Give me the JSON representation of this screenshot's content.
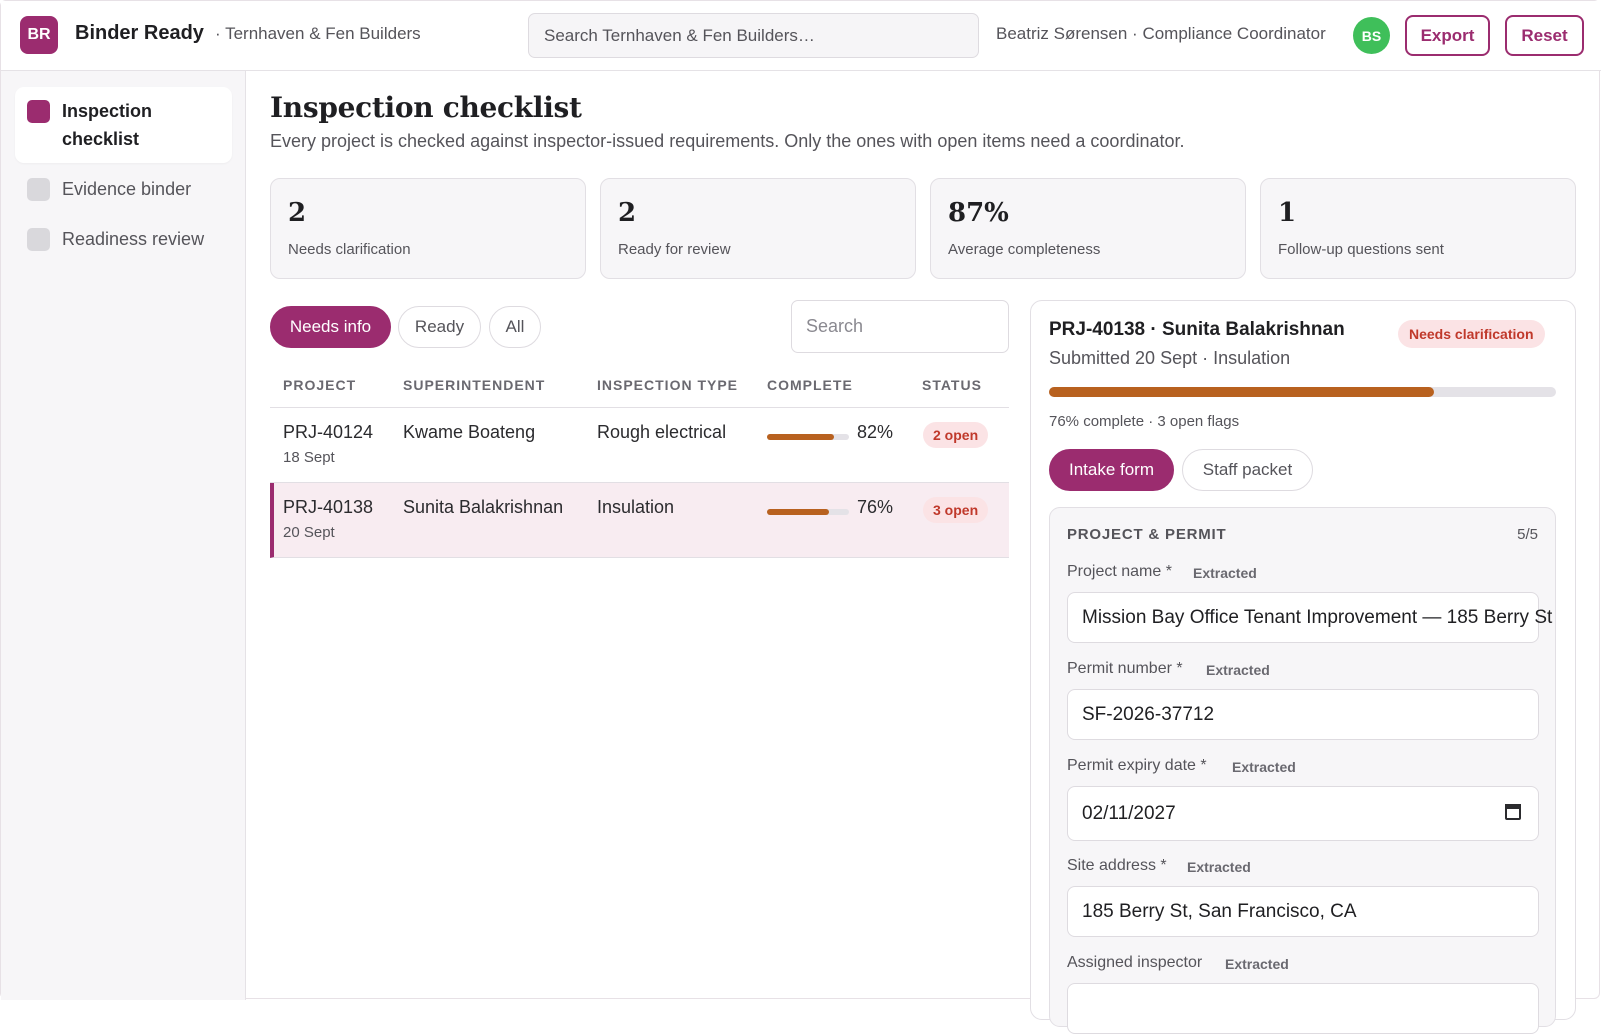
{
  "app": {
    "logo_initials": "BR",
    "name": "Binder Ready",
    "org": "· Ternhaven & Fen Builders",
    "search_placeholder": "Search Ternhaven & Fen Builders…",
    "user_label": "Beatriz Sørensen · Compliance Coordinator",
    "avatar_initials": "BS",
    "export_label": "Export",
    "reset_label": "Reset",
    "accent_color": "#9b2c6f"
  },
  "sidebar": {
    "items": [
      {
        "label": "Inspection checklist",
        "icon": "square-dot-icon",
        "active": true
      },
      {
        "label": "Evidence binder",
        "icon": "square-dot-icon",
        "active": false
      },
      {
        "label": "Readiness review",
        "icon": "square-dot-icon",
        "active": false
      }
    ]
  },
  "main": {
    "title": "Inspection checklist",
    "subtitle": "Every project is checked against inspector-issued requirements. Only the ones with open items need a coordinator.",
    "stats": [
      {
        "value": "2",
        "label": "Needs clarification"
      },
      {
        "value": "2",
        "label": "Ready for review"
      },
      {
        "value": "87%",
        "label": "Average completeness"
      },
      {
        "value": "1",
        "label": "Follow-up questions sent"
      }
    ],
    "filters": [
      "Needs info",
      "Ready",
      "All"
    ],
    "active_filter": "Needs info",
    "table_search_placeholder": "Search",
    "columns": [
      "PROJECT",
      "SUPERINTENDENT",
      "INSPECTION TYPE",
      "COMPLETE",
      "STATUS"
    ],
    "rows": [
      {
        "project": "PRJ-40124",
        "date": "18 Sept",
        "superintendent": "Kwame Boateng",
        "inspection_type": "Rough electrical",
        "complete": 82,
        "complete_label": "82%",
        "status": "2 open",
        "selected": false
      },
      {
        "project": "PRJ-40138",
        "date": "20 Sept",
        "superintendent": "Sunita Balakrishnan",
        "inspection_type": "Insulation",
        "complete": 76,
        "complete_label": "76%",
        "status": "3 open",
        "selected": true
      }
    ]
  },
  "detail": {
    "title": "PRJ-40138 · Sunita Balakrishnan",
    "status_badge": "Needs clarification",
    "subtitle": "Submitted 20 Sept · Insulation",
    "progress": 76,
    "meta": "76% complete · 3 open flags",
    "tabs": [
      "Intake form",
      "Staff packet"
    ],
    "active_tab": "Intake form",
    "section": {
      "title": "PROJECT & PERMIT",
      "count": "5/5",
      "fields": [
        {
          "label": "Project name *",
          "tag": "Extracted",
          "value": "Mission Bay Office Tenant Improvement — 185 Berry St"
        },
        {
          "label": "Permit number *",
          "tag": "Extracted",
          "value": "SF-2026-37712"
        },
        {
          "label": "Permit expiry date *",
          "tag": "Extracted",
          "value": "02/11/2027"
        },
        {
          "label": "Site address *",
          "tag": "Extracted",
          "value": "185 Berry St, San Francisco, CA"
        },
        {
          "label": "Assigned inspector",
          "tag": "Extracted",
          "value": ""
        }
      ]
    }
  }
}
